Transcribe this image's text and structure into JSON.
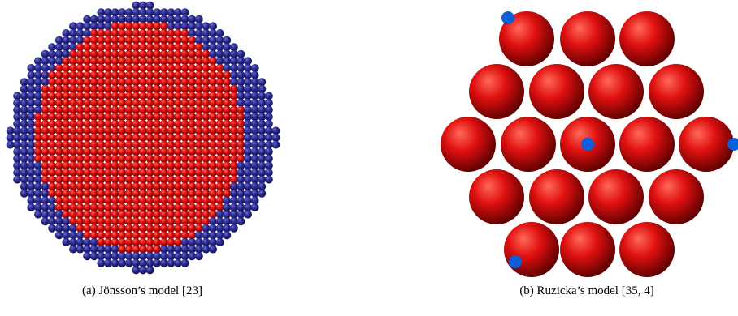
{
  "figures": [
    {
      "caption": "(a) Jönsson’s model [23]"
    },
    {
      "caption": "(b) Ruzicka’s model [35, 4]"
    }
  ]
}
